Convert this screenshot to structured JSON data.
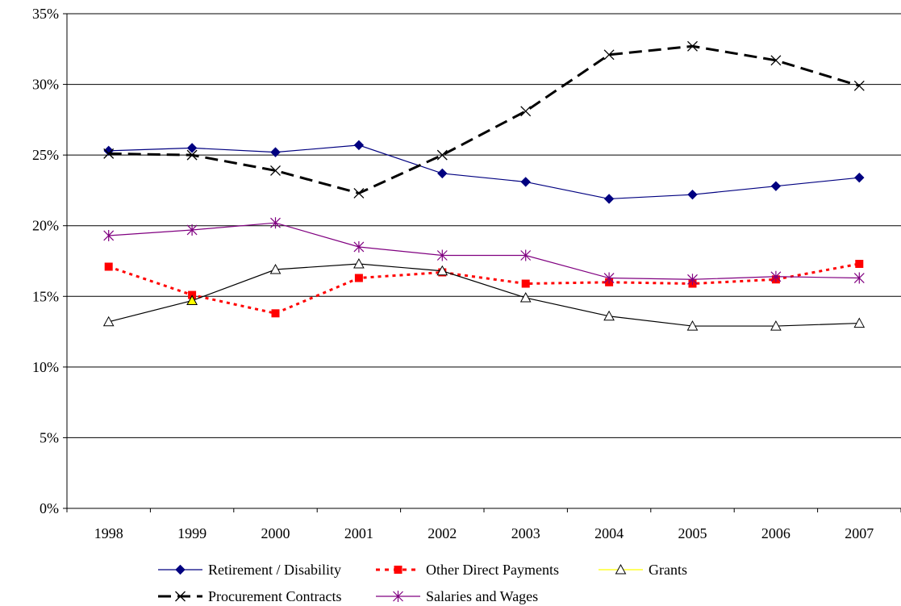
{
  "chart_data": {
    "type": "line",
    "title": "",
    "xlabel": "",
    "ylabel": "",
    "categories": [
      "1998",
      "1999",
      "2000",
      "2001",
      "2002",
      "2003",
      "2004",
      "2005",
      "2006",
      "2007"
    ],
    "ylim": [
      0,
      35
    ],
    "yticks": [
      "0%",
      "5%",
      "10%",
      "15%",
      "20%",
      "25%",
      "30%",
      "35%"
    ],
    "grid": "horizontal",
    "legend_position": "bottom",
    "series": [
      {
        "name": "Retirement / Disability",
        "values": [
          25.3,
          25.5,
          25.2,
          25.7,
          23.7,
          23.1,
          21.9,
          22.2,
          22.8,
          23.4
        ],
        "color": "#000080",
        "marker": "diamond",
        "line_style": "solid"
      },
      {
        "name": "Other Direct Payments",
        "values": [
          17.1,
          15.1,
          13.8,
          16.3,
          16.7,
          15.9,
          16.0,
          15.9,
          16.2,
          17.3
        ],
        "color": "#ff0000",
        "marker": "square",
        "line_style": "dotted"
      },
      {
        "name": "Grants",
        "values": [
          13.2,
          14.7,
          16.9,
          17.3,
          16.8,
          14.9,
          13.6,
          12.9,
          12.9,
          13.1
        ],
        "color": "#000000",
        "marker": "triangle",
        "line_style": "solid"
      },
      {
        "name": "Procurement Contracts",
        "values": [
          25.1,
          25.0,
          23.9,
          22.3,
          25.0,
          28.1,
          32.1,
          32.7,
          31.7,
          29.9
        ],
        "color": "#000000",
        "marker": "x",
        "line_style": "dashed"
      },
      {
        "name": "Salaries and Wages",
        "values": [
          19.3,
          19.7,
          20.2,
          18.5,
          17.9,
          17.9,
          16.3,
          16.2,
          16.4,
          16.3
        ],
        "color": "#800080",
        "marker": "star",
        "line_style": "solid"
      }
    ]
  }
}
